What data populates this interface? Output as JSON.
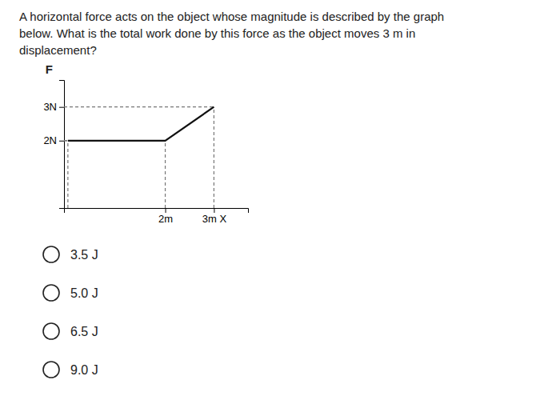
{
  "chart_data": {
    "type": "line",
    "title": [
      "A horizontal force acts on the object whose magnitude is described by the graph",
      "below. What is the total work done by this force as the object moves 3 m in",
      "displacement?"
    ],
    "y_label": "F",
    "x": [
      0,
      2,
      3
    ],
    "values": [
      2,
      2,
      3
    ],
    "color": "#111111",
    "xlim": [
      -0.08,
      3.7
    ],
    "ylim": [
      0,
      3.8
    ],
    "xticks": [
      {
        "value": 2,
        "label": "2m"
      },
      {
        "value": 3,
        "label": "3m X"
      }
    ],
    "yticks": [
      {
        "value": 2,
        "label": "2N"
      },
      {
        "value": 3,
        "label": "3N"
      }
    ],
    "annotations": [
      "3.5 J",
      "5.0 J",
      "6.5 J",
      "9.0 J"
    ]
  }
}
